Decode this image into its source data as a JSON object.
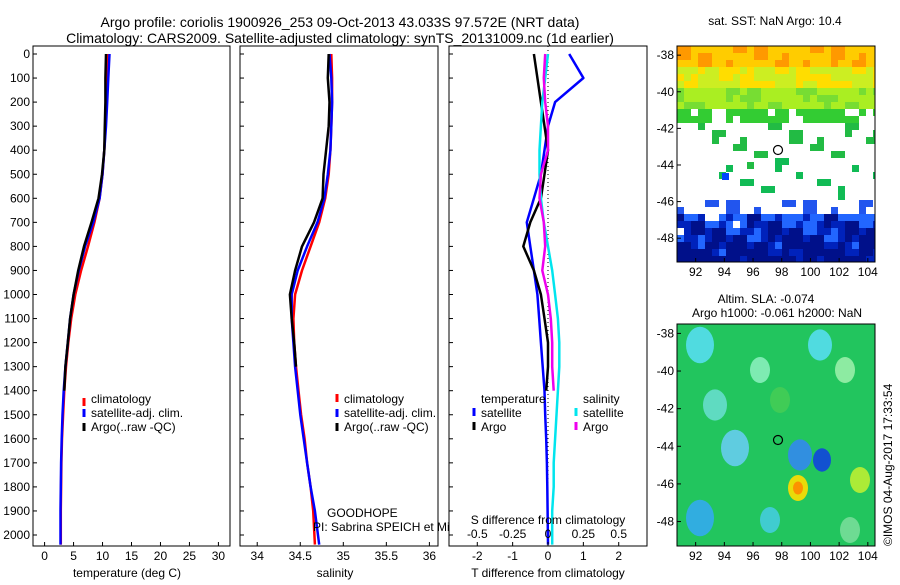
{
  "header": {
    "line1": "Argo profile: coriolis 1900926_253 09-Oct-2013 43.033S 97.572E (NRT data)",
    "line2": "Climatology: CARS2009. Satellite-adjusted climatology: synTS_20131009.nc (1d earlier)"
  },
  "depth_ticks": [
    "0",
    "100",
    "200",
    "300",
    "400",
    "500",
    "600",
    "700",
    "800",
    "900",
    "1000",
    "1100",
    "1200",
    "1300",
    "1400",
    "1500",
    "1600",
    "1700",
    "1800",
    "1900",
    "2000"
  ],
  "footer": {
    "project": "GOODHOPE",
    "pi": "PI: Sabrina SPEICH et Michel AREAN"
  },
  "colors": {
    "climatology": "#ff0000",
    "satellite": "#0000ff",
    "argo": "#000000",
    "sat_salinity": "#00e5ee",
    "argo_salinity": "#ee00ee"
  },
  "chart_data": [
    {
      "type": "line",
      "xlabel": "temperature (deg C)",
      "ylabel": "",
      "xlim": [
        -2,
        32
      ],
      "ylim": [
        2060,
        0
      ],
      "xticks": [
        "0",
        "5",
        "10",
        "15",
        "20",
        "25",
        "30"
      ],
      "legend": [
        "climatology",
        "satellite-adj. clim.",
        "Argo(..raw -QC)"
      ],
      "series": [
        {
          "name": "climatology",
          "x": [
            10.8,
            10.7,
            10.6,
            10.5,
            10.3,
            10.0,
            9.5,
            8.6,
            7.5,
            6.3,
            5.3,
            4.6,
            4.1,
            3.7,
            3.4,
            3.2,
            3.0,
            2.9,
            2.85,
            2.8,
            2.8
          ],
          "y": [
            0,
            100,
            200,
            300,
            400,
            500,
            600,
            700,
            800,
            900,
            1000,
            1100,
            1200,
            1300,
            1400,
            1500,
            1600,
            1700,
            1800,
            1900,
            2040
          ]
        },
        {
          "name": "satellite-adj. clim.",
          "x": [
            11.2,
            11.0,
            10.8,
            10.6,
            10.3,
            10.0,
            9.5,
            8.4,
            7.0,
            5.9,
            5.0,
            4.4,
            4.0,
            3.6,
            3.3,
            3.1,
            2.95,
            2.85,
            2.8,
            2.75,
            2.75
          ],
          "y": [
            0,
            100,
            200,
            300,
            400,
            500,
            600,
            700,
            800,
            900,
            1000,
            1100,
            1200,
            1300,
            1400,
            1500,
            1600,
            1700,
            1800,
            1900,
            2040
          ]
        },
        {
          "name": "Argo(..raw -QC)",
          "x": [
            10.6,
            10.5,
            10.5,
            10.4,
            10.3,
            9.9,
            9.3,
            8.1,
            6.8,
            5.8,
            5.0,
            4.4,
            4.0,
            3.6,
            3.4
          ],
          "y": [
            0,
            100,
            200,
            300,
            400,
            500,
            600,
            700,
            800,
            900,
            1000,
            1100,
            1200,
            1300,
            1400
          ]
        }
      ]
    },
    {
      "type": "line",
      "xlabel": "salinity",
      "ylabel": "",
      "xlim": [
        33.8,
        36.1
      ],
      "ylim": [
        2060,
        0
      ],
      "xticks": [
        "34",
        "34.5",
        "35",
        "35.5",
        "36"
      ],
      "legend": [
        "climatology",
        "satellite-adj. clim.",
        "Argo(..raw -QC)"
      ],
      "series": [
        {
          "name": "climatology",
          "x": [
            34.86,
            34.87,
            34.87,
            34.86,
            34.85,
            34.83,
            34.79,
            34.72,
            34.62,
            34.52,
            34.44,
            34.42,
            34.43,
            34.45,
            34.48,
            34.51,
            34.55,
            34.58,
            34.62,
            34.65,
            34.67
          ],
          "y": [
            0,
            100,
            200,
            300,
            400,
            500,
            600,
            700,
            800,
            900,
            1000,
            1100,
            1200,
            1300,
            1400,
            1500,
            1600,
            1700,
            1800,
            1900,
            2040
          ]
        },
        {
          "name": "satellite-adj. clim.",
          "x": [
            34.84,
            34.86,
            34.87,
            34.86,
            34.85,
            34.82,
            34.78,
            34.7,
            34.58,
            34.47,
            34.4,
            34.4,
            34.42,
            34.44,
            34.47,
            34.5,
            34.54,
            34.58,
            34.62,
            34.67,
            34.72
          ],
          "y": [
            0,
            100,
            200,
            300,
            400,
            500,
            600,
            700,
            800,
            900,
            1000,
            1100,
            1200,
            1300,
            1400,
            1500,
            1600,
            1700,
            1800,
            1900,
            2040
          ]
        },
        {
          "name": "Argo(..raw -QC)",
          "x": [
            34.83,
            34.82,
            34.84,
            34.83,
            34.8,
            34.77,
            34.76,
            34.66,
            34.52,
            34.44,
            34.38,
            34.4,
            34.43,
            34.45
          ],
          "y": [
            0,
            100,
            200,
            300,
            400,
            500,
            600,
            700,
            800,
            900,
            1000,
            1100,
            1200,
            1300
          ]
        }
      ]
    },
    {
      "type": "line",
      "xlabel": "T difference from climatology",
      "xlabel2": "S difference from climatology",
      "ylabel": "",
      "xlim": [
        -2.8,
        2.8
      ],
      "ylim": [
        2060,
        0
      ],
      "xticks": [
        "-2",
        "-1",
        "0",
        "1",
        "2"
      ],
      "xticks_s": [
        "-0.5",
        "-0.25",
        "0",
        "0.25",
        "0.5"
      ],
      "legend_temperature_title": "temperature",
      "legend_salinity_title": "salinity",
      "legend": [
        "satellite",
        "Argo",
        "satellite",
        "Argo"
      ],
      "series": [
        {
          "name": "satellite",
          "x": [
            0.6,
            1.0,
            0.2,
            0.0,
            -0.1,
            -0.2,
            -0.4,
            -0.6,
            -0.5,
            -0.4,
            -0.3,
            -0.25,
            -0.2,
            -0.15,
            -0.1,
            -0.08,
            -0.05,
            -0.03,
            -0.02,
            -0.01,
            0.0
          ],
          "y": [
            0,
            100,
            200,
            300,
            400,
            500,
            600,
            700,
            800,
            900,
            1000,
            1100,
            1200,
            1300,
            1400,
            1500,
            1600,
            1700,
            1800,
            1900,
            2040
          ]
        },
        {
          "name": "Argo",
          "x": [
            -0.4,
            -0.3,
            -0.2,
            -0.1,
            0.0,
            -0.1,
            -0.2,
            -0.5,
            -0.7,
            -0.4,
            -0.2,
            -0.1,
            0.0,
            0.0,
            -0.05
          ],
          "y": [
            0,
            100,
            200,
            300,
            400,
            500,
            600,
            700,
            800,
            900,
            1000,
            1100,
            1200,
            1300,
            1400
          ]
        },
        {
          "name": "satellite",
          "x": [
            0.0,
            -0.02,
            -0.04,
            -0.05,
            -0.06,
            -0.06,
            -0.05,
            -0.03,
            0.0,
            0.03,
            0.05,
            0.07,
            0.08,
            0.08,
            0.07,
            0.06,
            0.05,
            0.04,
            0.04,
            0.03,
            0.03
          ],
          "y": [
            0,
            100,
            200,
            300,
            400,
            500,
            600,
            700,
            800,
            900,
            1000,
            1100,
            1200,
            1300,
            1400,
            1500,
            1600,
            1700,
            1800,
            1900,
            2040
          ]
        },
        {
          "name": "Argo",
          "x": [
            -0.02,
            -0.03,
            -0.02,
            0.0,
            0.0,
            -0.05,
            -0.06,
            -0.03,
            -0.02,
            -0.04,
            0.0,
            0.02,
            0.03,
            0.03,
            0.04
          ],
          "y": [
            0,
            100,
            200,
            300,
            400,
            500,
            600,
            700,
            800,
            900,
            1000,
            1100,
            1200,
            1300,
            1400
          ]
        }
      ]
    },
    {
      "type": "heatmap",
      "title": "sat. SST: NaN Argo: 10.4",
      "xticks": [
        "92",
        "94",
        "96",
        "98",
        "100",
        "102",
        "104"
      ],
      "yticks": [
        "-38",
        "-40",
        "-42",
        "-44",
        "-46",
        "-48"
      ],
      "marker": {
        "lon": 97.572,
        "lat": -43.033
      }
    },
    {
      "type": "heatmap",
      "title_line1": "Altim. SLA: -0.074",
      "title_line2": "Argo h1000: -0.061 h2000: NaN",
      "xticks": [
        "92",
        "94",
        "96",
        "98",
        "100",
        "102",
        "104"
      ],
      "yticks": [
        "-38",
        "-40",
        "-42",
        "-44",
        "-46",
        "-48"
      ],
      "marker": {
        "lon": 97.572,
        "lat": -43.033
      }
    }
  ],
  "stamp": "©IMOS 04-Aug-2017 17:33:54"
}
